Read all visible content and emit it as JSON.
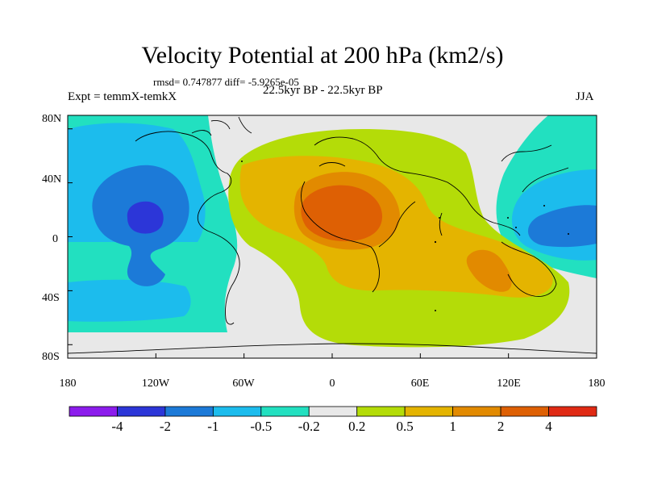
{
  "title": "Velocity Potential at 200 hPa (km2/s)",
  "stats": "rmsd= 0.747877 diff= -5.9265e-05",
  "experiment": "Expt = temmX-temkX",
  "period": "22.5kyr BP - 22.5kyr BP",
  "season": "JJA",
  "map": {
    "lon_range": [
      -180,
      180
    ],
    "lat_range": [
      -90,
      90
    ],
    "lat_ticks": [
      "80N",
      "40N",
      "0",
      "40S",
      "80S"
    ],
    "lon_ticks": [
      "180",
      "120W",
      "60W",
      "0",
      "60E",
      "120E",
      "180"
    ]
  },
  "colorbar": {
    "colors": [
      "#8c1cec",
      "#2c36d8",
      "#1c7ad8",
      "#1cbced",
      "#22e0c0",
      "#e8e8e8",
      "#b4dc08",
      "#e4b400",
      "#e28a00",
      "#de6004",
      "#e02a14"
    ],
    "labels": [
      "-4",
      "-2",
      "-1",
      "-0.5",
      "-0.2",
      "0.2",
      "0.5",
      "1",
      "2",
      "4"
    ]
  }
}
